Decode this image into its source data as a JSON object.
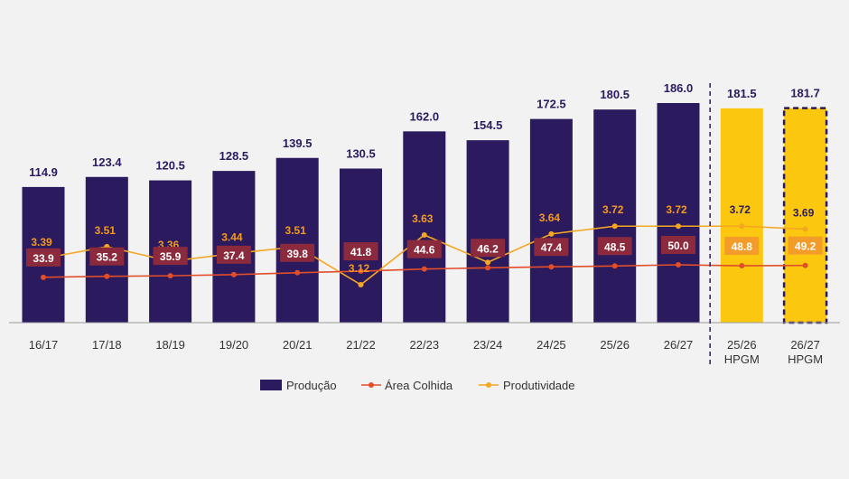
{
  "chart_data": {
    "type": "bar",
    "categories": [
      [
        "16/17"
      ],
      [
        "17/18"
      ],
      [
        "18/19"
      ],
      [
        "19/20"
      ],
      [
        "20/21"
      ],
      [
        "21/22"
      ],
      [
        "22/23"
      ],
      [
        "23/24"
      ],
      [
        "24/25"
      ],
      [
        "25/26"
      ],
      [
        "26/27"
      ],
      [
        "25/26",
        "HPGM"
      ],
      [
        "26/27",
        "HPGM"
      ]
    ],
    "series": [
      {
        "name": "Produção",
        "type": "bar",
        "values": [
          114.9,
          123.4,
          120.5,
          128.5,
          139.5,
          130.5,
          162.0,
          154.5,
          172.5,
          180.5,
          186.0,
          181.5,
          181.7
        ]
      },
      {
        "name": "Área Colhida",
        "type": "line",
        "values": [
          33.9,
          35.2,
          35.9,
          37.4,
          39.8,
          41.8,
          44.6,
          46.2,
          47.4,
          48.5,
          50.0,
          48.8,
          49.2
        ]
      },
      {
        "name": "Produtividade",
        "type": "line",
        "values": [
          3.39,
          3.51,
          3.36,
          3.44,
          3.51,
          3.12,
          3.63,
          3.35,
          3.64,
          3.72,
          3.72,
          3.72,
          3.69
        ]
      }
    ],
    "legend_position": "bottom-center",
    "grid": false,
    "colors": {
      "bar": "#2b1a5e",
      "bar_highlight": "#fbc80f",
      "area_line": "#e04e2a",
      "area_label_bg": "#8b2a3c",
      "area_label_bg_highlight": "#f39c2a",
      "prod_line": "#f5a623",
      "prod_label": "#f59a1d",
      "prod_label_highlight": "#2b1a5e",
      "divider": "#2b1a5e"
    }
  }
}
